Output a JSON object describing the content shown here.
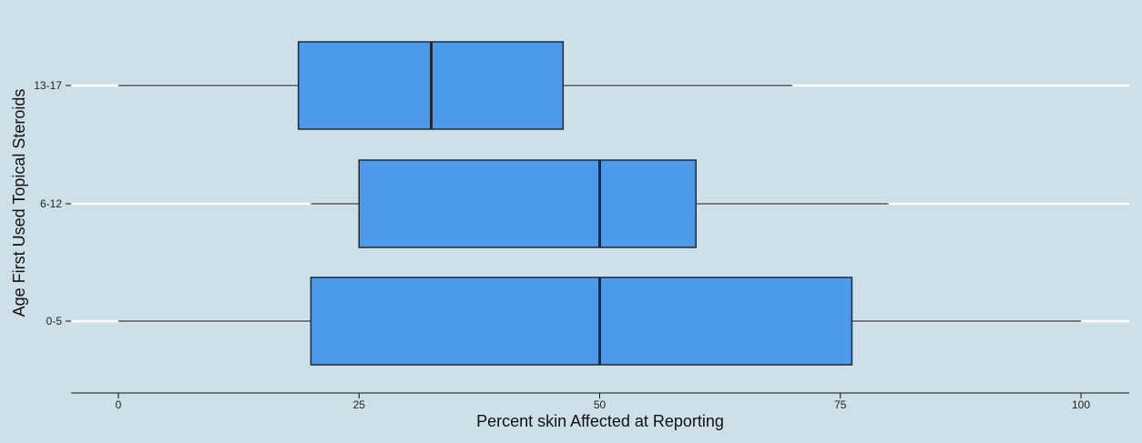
{
  "chart_data": {
    "type": "boxplot",
    "orientation": "horizontal",
    "title": "",
    "xlabel": "Percent skin Affected at Reporting",
    "ylabel": "Age First Used Topical Steroids",
    "xlim": [
      -5,
      105
    ],
    "xticks": [
      0,
      25,
      50,
      75,
      100
    ],
    "grid": "horizontal gridlines",
    "colors": {
      "box": "#4d9aeb",
      "outline": "#1f2a33",
      "background": "#cddfe7",
      "grid": "#ffffff"
    },
    "categories": [
      "13-17",
      "6-12",
      "0-5"
    ],
    "boxes": [
      {
        "category": "13-17",
        "min": 0,
        "q1": 18.7,
        "median": 32.5,
        "q3": 46.2,
        "max": 70
      },
      {
        "category": "6-12",
        "min": 20,
        "q1": 25,
        "median": 50,
        "q3": 60,
        "max": 80
      },
      {
        "category": "0-5",
        "min": 0,
        "q1": 20,
        "median": 50,
        "q3": 76.2,
        "max": 100
      }
    ]
  }
}
